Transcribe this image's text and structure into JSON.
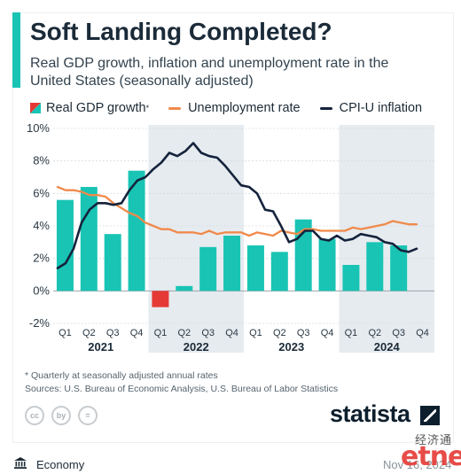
{
  "header": {
    "title": "Soft Landing Completed?",
    "subtitle": "Real GDP growth, inflation and unemployment rate in the United States (seasonally adjusted)",
    "accent_color": "#19c4b4"
  },
  "legend": {
    "gdp": "Real GDP growth",
    "gdp_mark": "*",
    "unemployment": "Unemployment rate",
    "cpi": "CPI-U inflation"
  },
  "chart_data": {
    "type": "bar",
    "y_ticks": [
      "10%",
      "8%",
      "6%",
      "4%",
      "2%",
      "0%",
      "-2%"
    ],
    "ylim": [
      -2,
      10
    ],
    "quarters": [
      "Q1",
      "Q2",
      "Q3",
      "Q4",
      "Q1",
      "Q2",
      "Q3",
      "Q4",
      "Q1",
      "Q2",
      "Q3",
      "Q4",
      "Q1",
      "Q2",
      "Q3",
      "Q4"
    ],
    "years": [
      "2021",
      "2022",
      "2023",
      "2024"
    ],
    "shaded_years": [
      "2022",
      "2024"
    ],
    "colors": {
      "gdp_positive": "#19c4b4",
      "gdp_negative": "#e53935",
      "unemployment": "#f08a4b",
      "cpi": "#14233c",
      "shade": "#e6ebef"
    },
    "series": [
      {
        "name": "Real GDP growth",
        "type": "bar",
        "values": [
          5.6,
          6.4,
          3.5,
          7.4,
          -1.0,
          0.3,
          2.7,
          3.4,
          2.8,
          2.4,
          4.4,
          3.2,
          1.6,
          3.0,
          2.8,
          null
        ]
      },
      {
        "name": "Unemployment rate",
        "type": "line",
        "values": [
          6.4,
          6.2,
          6.2,
          6.1,
          5.9,
          5.9,
          5.8,
          5.4,
          5.1,
          4.8,
          4.6,
          4.2,
          4.0,
          3.8,
          3.8,
          3.6,
          3.6,
          3.6,
          3.5,
          3.7,
          3.5,
          3.6,
          3.6,
          3.6,
          3.4,
          3.6,
          3.5,
          3.4,
          3.7,
          3.6,
          3.5,
          3.8,
          3.8,
          3.7,
          3.7,
          3.7,
          3.7,
          3.9,
          3.8,
          3.9,
          4.0,
          4.1,
          4.3,
          4.2,
          4.1,
          4.1
        ]
      },
      {
        "name": "CPI-U inflation",
        "type": "line",
        "values": [
          1.4,
          1.7,
          2.6,
          4.2,
          5.0,
          5.4,
          5.4,
          5.3,
          5.4,
          6.2,
          6.8,
          7.0,
          7.5,
          7.9,
          8.5,
          8.3,
          8.6,
          9.1,
          8.5,
          8.3,
          8.2,
          7.7,
          7.1,
          6.5,
          6.4,
          6.0,
          5.0,
          4.9,
          4.0,
          3.0,
          3.2,
          3.7,
          3.7,
          3.2,
          3.1,
          3.4,
          3.1,
          3.2,
          3.5,
          3.4,
          3.3,
          3.0,
          2.9,
          2.5,
          2.4,
          2.6
        ]
      }
    ]
  },
  "footer": {
    "footnote": "* Quarterly at seasonally adjusted annual rates",
    "sources": "Sources: U.S. Bureau of Economic Analysis, U.S. Bureau of Labor Statistics",
    "cc_icons": [
      "cc",
      "by",
      "="
    ],
    "brand": "statista"
  },
  "bottom_bar": {
    "category": "Economy",
    "date": "Nov 16, 2024"
  },
  "watermark": {
    "chinese": "经济通",
    "latin": "etnet"
  }
}
